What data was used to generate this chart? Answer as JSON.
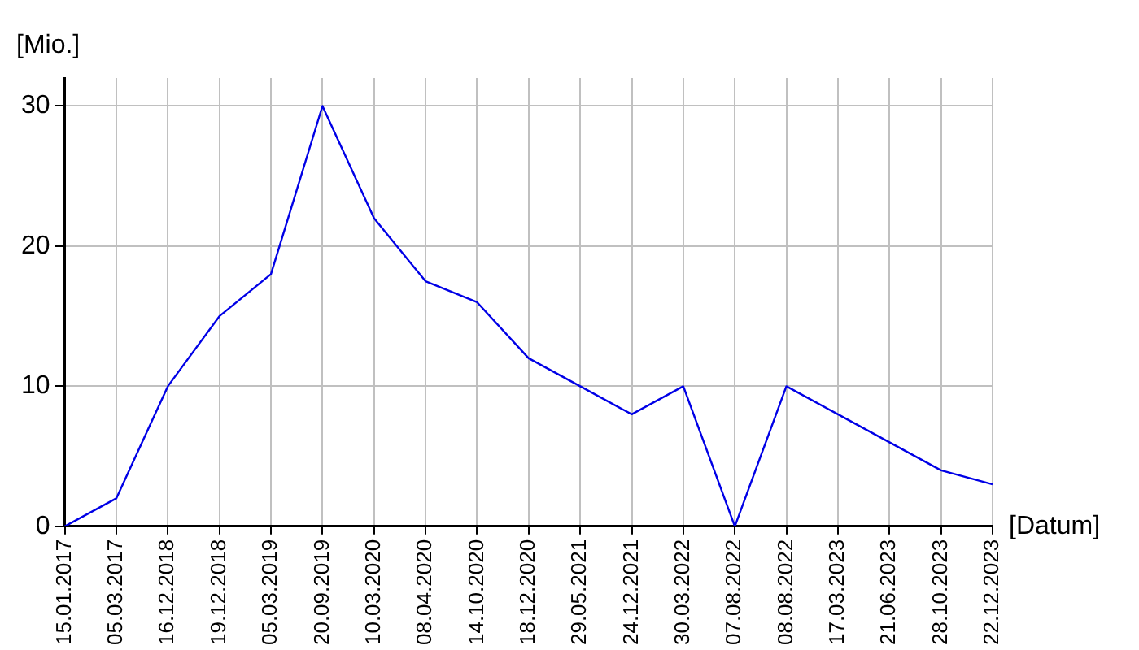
{
  "chart_data": {
    "type": "line",
    "xlabel": "[Datum]",
    "ylabel": "[Mio.]",
    "categories": [
      "15.01.2017",
      "05.03.2017",
      "16.12.2018",
      "19.12.2018",
      "05.03.2019",
      "20.09.2019",
      "10.03.2020",
      "08.04.2020",
      "14.10.2020",
      "18.12.2020",
      "29.05.2021",
      "24.12.2021",
      "30.03.2022",
      "07.08.2022",
      "08.08.2022",
      "17.03.2023",
      "21.06.2023",
      "28.10.2023",
      "22.12.2023"
    ],
    "series": [
      {
        "color": "#0000e6",
        "values": [
          0,
          2,
          10,
          15,
          18,
          30,
          22,
          17.5,
          16,
          12,
          10,
          8,
          10,
          0,
          10,
          8,
          6,
          4,
          3
        ]
      }
    ],
    "ylim": [
      0,
      32
    ],
    "yticks": [
      0,
      10,
      20,
      30
    ],
    "grid": true,
    "legend": false,
    "marker": "none",
    "line_style": "solid"
  }
}
